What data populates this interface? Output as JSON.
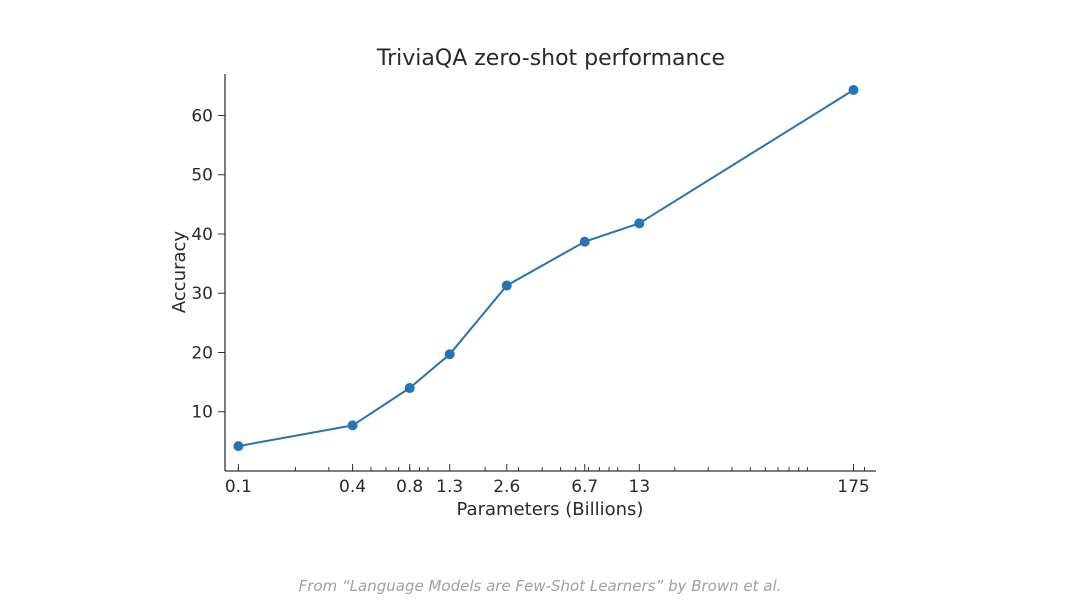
{
  "chart_data": {
    "type": "line",
    "title": "TriviaQA zero-shot performance",
    "xlabel": "Parameters (Billions)",
    "ylabel": "Accuracy",
    "x_scale": "log",
    "xlim": [
      0.085,
      230
    ],
    "ylim": [
      0,
      67
    ],
    "x_ticks": [
      0.1,
      0.4,
      0.8,
      1.3,
      2.6,
      6.7,
      13,
      175
    ],
    "x_tick_labels": [
      "0.1",
      "0.4",
      "0.8",
      "1.3",
      "2.6",
      "6.7",
      "13",
      "175"
    ],
    "y_ticks": [
      10,
      20,
      30,
      40,
      50,
      60
    ],
    "y_tick_labels": [
      "10",
      "20",
      "30",
      "40",
      "50",
      "60"
    ],
    "grid": false,
    "color": "#2874b3",
    "series": [
      {
        "x": [
          0.1,
          0.4,
          0.8,
          1.3,
          2.6,
          6.7,
          13,
          175
        ],
        "values": [
          4.2,
          7.7,
          14.0,
          19.7,
          31.3,
          38.7,
          41.8,
          64.3
        ]
      }
    ]
  },
  "caption": "From “Language Models are Few-Shot Learners” by Brown et al."
}
